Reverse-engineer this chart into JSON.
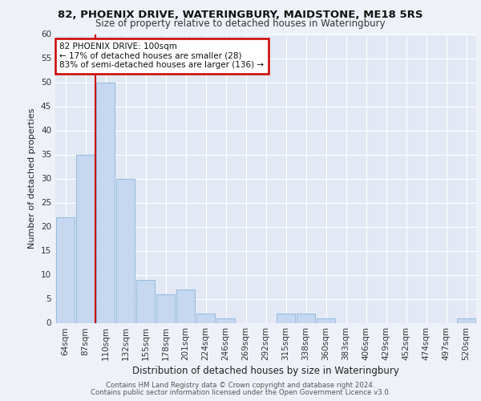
{
  "title1": "82, PHOENIX DRIVE, WATERINGBURY, MAIDSTONE, ME18 5RS",
  "title2": "Size of property relative to detached houses in Wateringbury",
  "xlabel": "Distribution of detached houses by size in Wateringbury",
  "ylabel": "Number of detached properties",
  "footer1": "Contains HM Land Registry data © Crown copyright and database right 2024.",
  "footer2": "Contains public sector information licensed under the Open Government Licence v3.0.",
  "annotation_title": "82 PHOENIX DRIVE: 100sqm",
  "annotation_line1": "← 17% of detached houses are smaller (28)",
  "annotation_line2": "83% of semi-detached houses are larger (136) →",
  "bar_labels": [
    "64sqm",
    "87sqm",
    "110sqm",
    "132sqm",
    "155sqm",
    "178sqm",
    "201sqm",
    "224sqm",
    "246sqm",
    "269sqm",
    "292sqm",
    "315sqm",
    "338sqm",
    "360sqm",
    "383sqm",
    "406sqm",
    "429sqm",
    "452sqm",
    "474sqm",
    "497sqm",
    "520sqm"
  ],
  "bar_values": [
    22,
    35,
    50,
    30,
    9,
    6,
    7,
    2,
    1,
    0,
    0,
    2,
    2,
    1,
    0,
    0,
    0,
    0,
    0,
    0,
    1
  ],
  "bar_color": "#c5d8f0",
  "bar_edge_color": "#8ab4d8",
  "vline_color": "#cc0000",
  "vline_pos": 1.5,
  "annotation_box_color": "#cc0000",
  "annotation_fill": "#ffffff",
  "ylim": [
    0,
    60
  ],
  "yticks": [
    0,
    5,
    10,
    15,
    20,
    25,
    30,
    35,
    40,
    45,
    50,
    55,
    60
  ],
  "bg_color": "#eef2f8",
  "plot_bg_color": "#e2e8f4",
  "grid_color": "#ffffff",
  "title1_fontsize": 9.5,
  "title2_fontsize": 8.5,
  "ylabel_fontsize": 8,
  "xlabel_fontsize": 8.5,
  "tick_fontsize": 7.5,
  "footer_fontsize": 6.2
}
